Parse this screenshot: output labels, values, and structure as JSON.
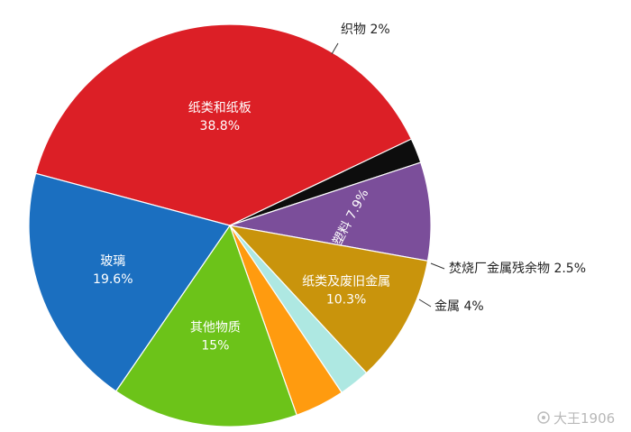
{
  "chart_data": {
    "type": "pie",
    "slices": [
      {
        "name": "纸类和纸板",
        "value": 38.8,
        "label": "38.8%",
        "color": "#dc1f26",
        "label_pos": "inside"
      },
      {
        "name": "织物",
        "value": 2,
        "label": "2%",
        "color": "#0d0d0d",
        "label_pos": "outside"
      },
      {
        "name": "塑料",
        "value": 7.9,
        "label": "7.9%",
        "color": "#7b4e9a",
        "label_pos": "inside-rotated"
      },
      {
        "name": "纸类及废旧金属",
        "value": 10.3,
        "label": "10.3%",
        "color": "#c9940c",
        "label_pos": "inside"
      },
      {
        "name": "焚烧厂金属残余物",
        "value": 2.5,
        "label": "2.5%",
        "color": "#aee8e2",
        "label_pos": "outside"
      },
      {
        "name": "金属",
        "value": 4,
        "label": "4%",
        "color": "#ff9b0f",
        "label_pos": "outside"
      },
      {
        "name": "其他物质",
        "value": 15,
        "label": "15%",
        "color": "#6cc319",
        "label_pos": "inside"
      },
      {
        "name": "玻璃",
        "value": 19.6,
        "label": "19.6%",
        "color": "#1b6fc0",
        "label_pos": "inside"
      }
    ],
    "legend": "none",
    "direction": "clockwise",
    "start": "top"
  },
  "watermark": "大王1906"
}
